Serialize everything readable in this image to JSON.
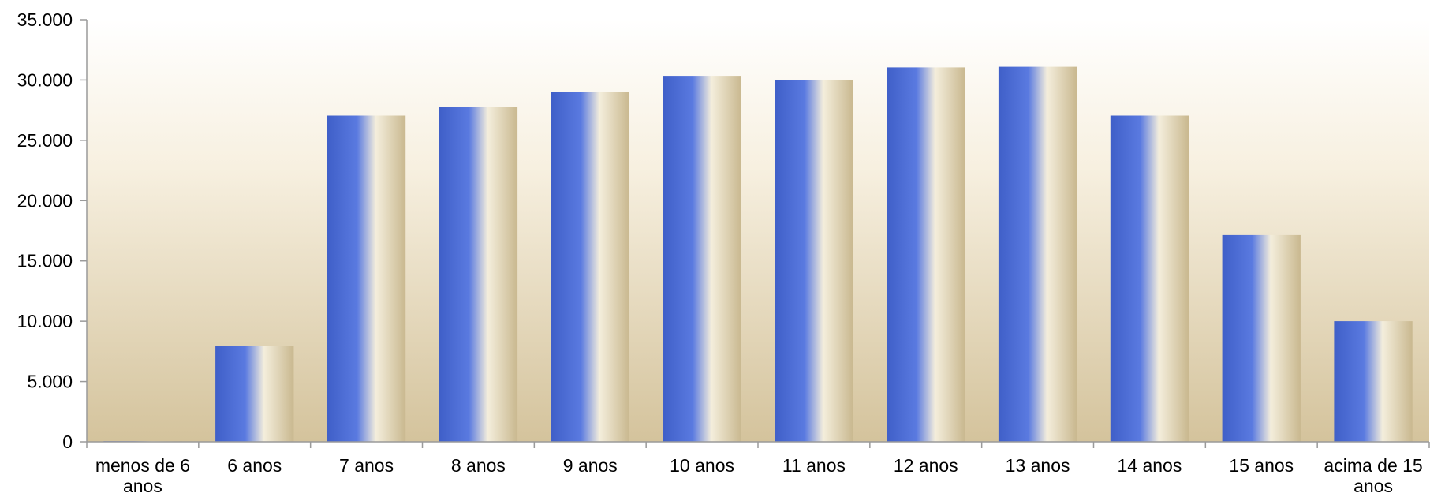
{
  "chart_data": {
    "type": "bar",
    "title": "",
    "xlabel": "",
    "ylabel": "",
    "categories": [
      [
        "menos de 6",
        "anos"
      ],
      [
        "6 anos"
      ],
      [
        "7 anos"
      ],
      [
        "8 anos"
      ],
      [
        "9 anos"
      ],
      [
        "10 anos"
      ],
      [
        "11 anos"
      ],
      [
        "12 anos"
      ],
      [
        "13 anos"
      ],
      [
        "14 anos"
      ],
      [
        "15 anos"
      ],
      [
        "acima de 15",
        "anos"
      ]
    ],
    "values": [
      50,
      7950,
      27050,
      27750,
      29000,
      30350,
      30000,
      31050,
      31100,
      27050,
      17150,
      10000
    ],
    "ylim": [
      0,
      35000
    ],
    "yticks": [
      0,
      5000,
      10000,
      15000,
      20000,
      25000,
      30000,
      35000
    ],
    "ytick_labels": [
      "0",
      "5.000",
      "10.000",
      "15.000",
      "20.000",
      "25.000",
      "30.000",
      "35.000"
    ],
    "grid": false,
    "legend": "none",
    "colors": {
      "bar_left": "#3F5FC8",
      "bar_mid": "#5A7AE0",
      "bar_highlight": "#F4EEDC",
      "bar_right": "#C9B88F",
      "plot_bg_top": "#FFFFFF",
      "plot_bg_bottom": "#D4C39C",
      "axis": "#9A9A9A"
    }
  }
}
